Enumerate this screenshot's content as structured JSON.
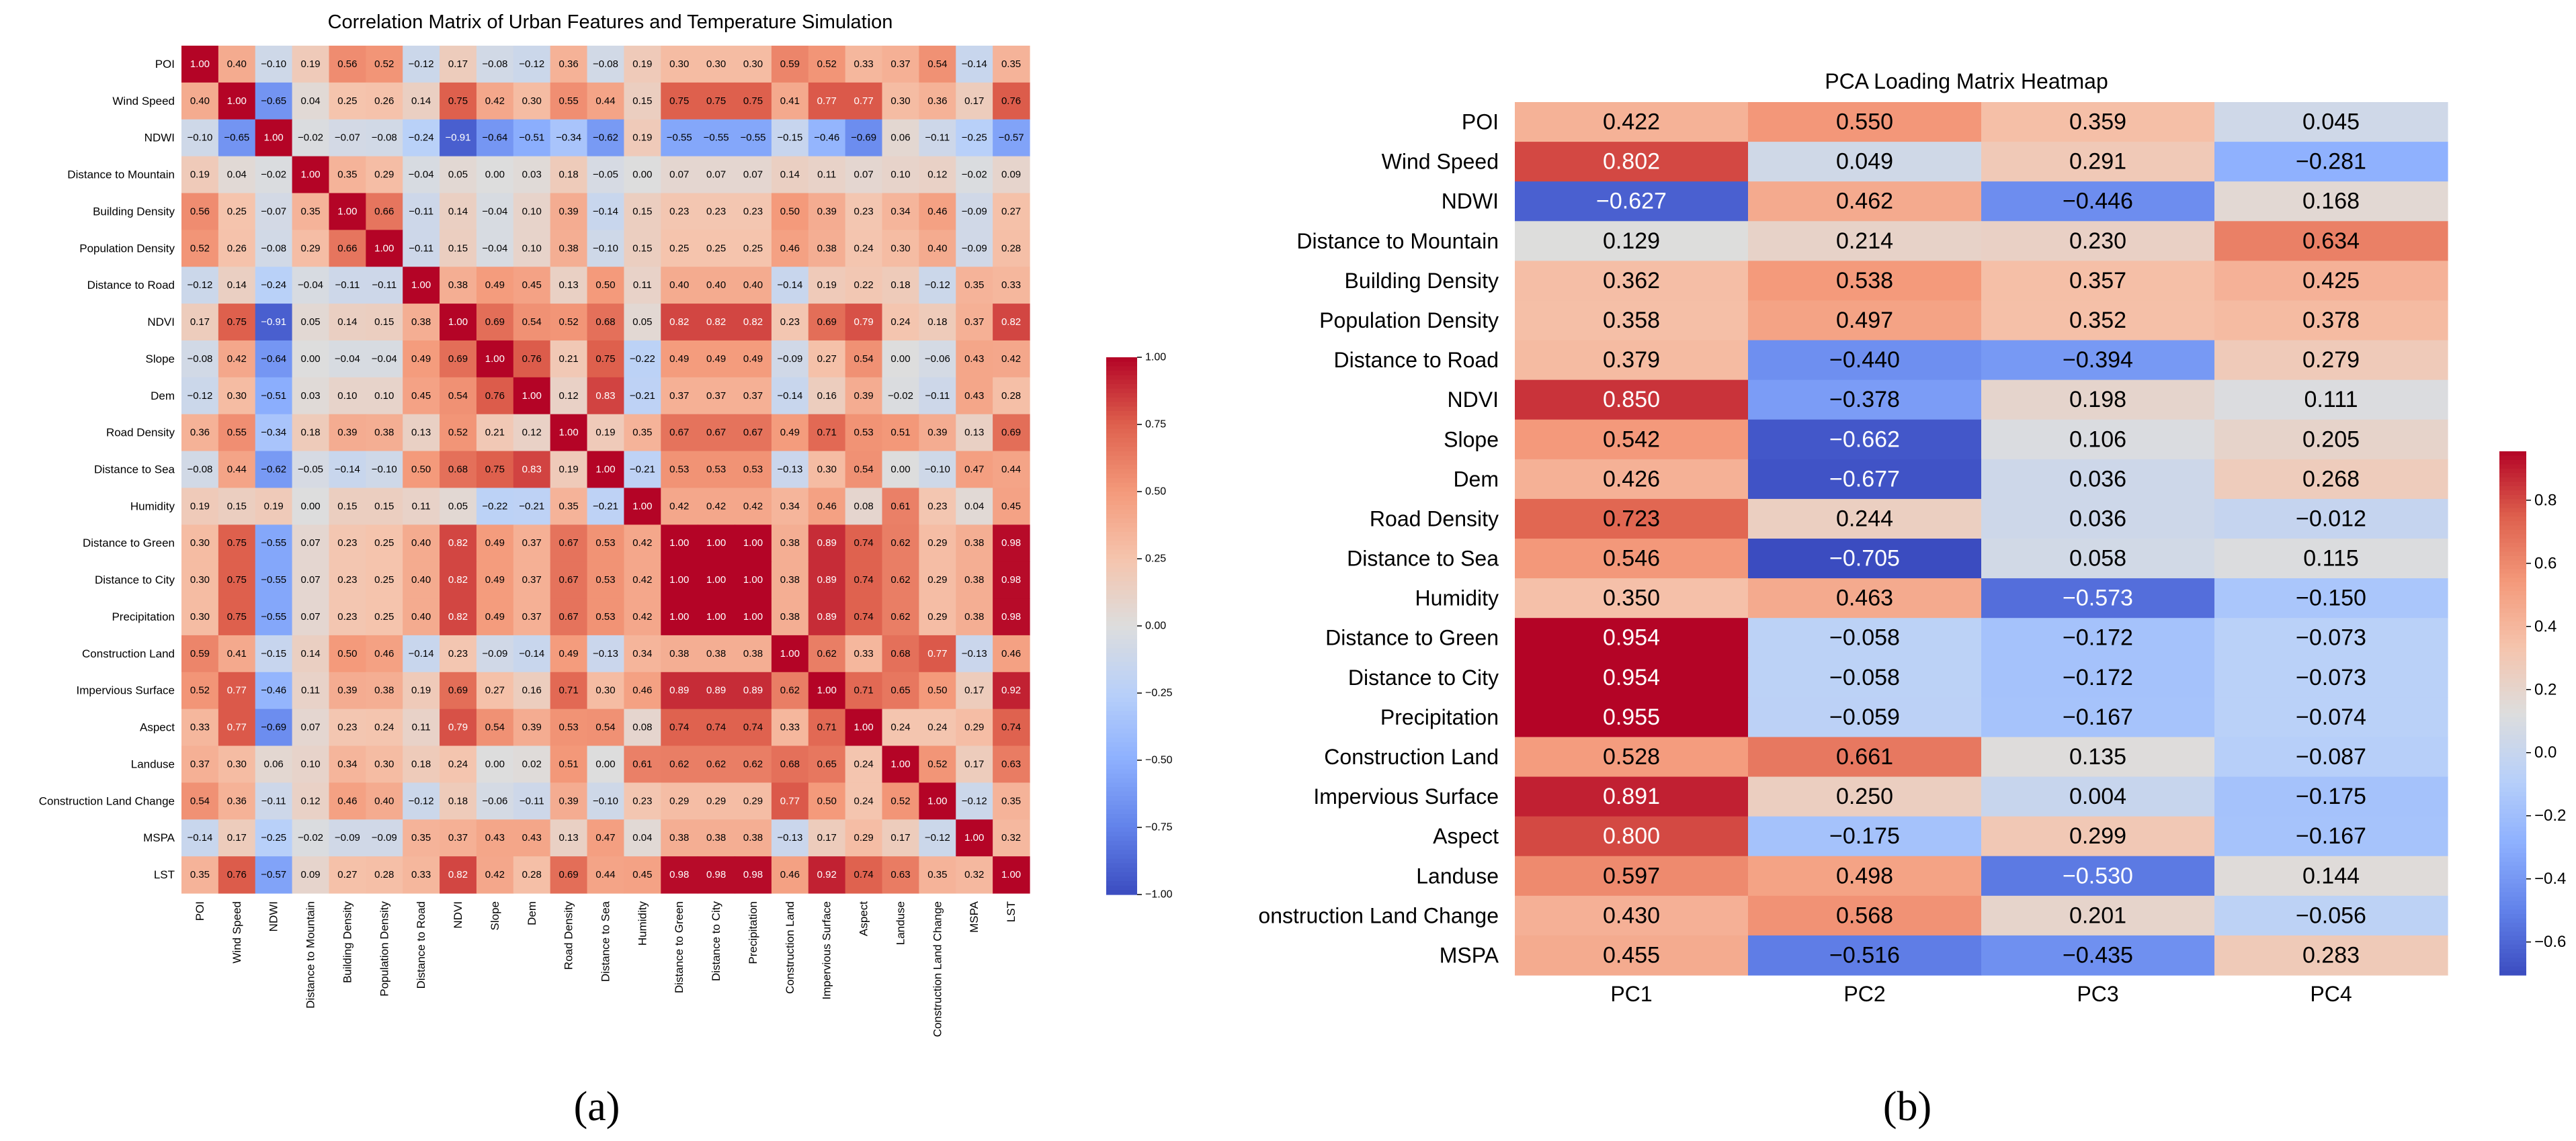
{
  "chart_data": [
    {
      "type": "heatmap",
      "title": "Correlation Matrix of Urban Features and Temperature Simulation",
      "panel_label": "(a)",
      "row_labels": [
        "POI",
        "Wind Speed",
        "NDWI",
        "Distance to Mountain",
        "Building Density",
        "Population Density",
        "Distance to Road",
        "NDVI",
        "Slope",
        "Dem",
        "Road Density",
        "Distance to Sea",
        "Humidity",
        "Distance to Green",
        "Distance to City",
        "Precipitation",
        "Construction Land",
        "Impervious Surface",
        "Aspect",
        "Landuse",
        "Construction Land Change",
        "MSPA",
        "LST"
      ],
      "col_labels": [
        "POI",
        "Wind Speed",
        "NDWI",
        "Distance to Mountain",
        "Building Density",
        "Population Density",
        "Distance to Road",
        "NDVI",
        "Slope",
        "Dem",
        "Road Density",
        "Distance to Sea",
        "Humidity",
        "Distance to Green",
        "Distance to City",
        "Precipitation",
        "Construction Land",
        "Impervious Surface",
        "Aspect",
        "Landuse",
        "Construction Land Change",
        "MSPA",
        "LST"
      ],
      "values": [
        [
          1.0,
          0.4,
          -0.1,
          0.19,
          0.56,
          0.52,
          -0.12,
          0.17,
          -0.08,
          -0.12,
          0.36,
          -0.08,
          0.19,
          0.3,
          0.3,
          0.3,
          0.59,
          0.52,
          0.33,
          0.37,
          0.54,
          -0.14,
          0.35
        ],
        [
          0.4,
          1.0,
          -0.65,
          0.04,
          0.25,
          0.26,
          0.14,
          0.75,
          0.42,
          0.3,
          0.55,
          0.44,
          0.15,
          0.75,
          0.75,
          0.75,
          0.41,
          0.77,
          0.77,
          0.3,
          0.36,
          0.17,
          0.76
        ],
        [
          -0.1,
          -0.65,
          1.0,
          -0.02,
          -0.07,
          -0.08,
          -0.24,
          -0.91,
          -0.64,
          -0.51,
          -0.34,
          -0.62,
          0.19,
          -0.55,
          -0.55,
          -0.55,
          -0.15,
          -0.46,
          -0.69,
          0.06,
          -0.11,
          -0.25,
          -0.57
        ],
        [
          0.19,
          0.04,
          -0.02,
          1.0,
          0.35,
          0.29,
          -0.04,
          0.05,
          0.0,
          0.03,
          0.18,
          -0.05,
          0.0,
          0.07,
          0.07,
          0.07,
          0.14,
          0.11,
          0.07,
          0.1,
          0.12,
          -0.02,
          0.09
        ],
        [
          0.56,
          0.25,
          -0.07,
          0.35,
          1.0,
          0.66,
          -0.11,
          0.14,
          -0.04,
          0.1,
          0.39,
          -0.14,
          0.15,
          0.23,
          0.23,
          0.23,
          0.5,
          0.39,
          0.23,
          0.34,
          0.46,
          -0.09,
          0.27
        ],
        [
          0.52,
          0.26,
          -0.08,
          0.29,
          0.66,
          1.0,
          -0.11,
          0.15,
          -0.04,
          0.1,
          0.38,
          -0.1,
          0.15,
          0.25,
          0.25,
          0.25,
          0.46,
          0.38,
          0.24,
          0.3,
          0.4,
          -0.09,
          0.28
        ],
        [
          -0.12,
          0.14,
          -0.24,
          -0.04,
          -0.11,
          -0.11,
          1.0,
          0.38,
          0.49,
          0.45,
          0.13,
          0.5,
          0.11,
          0.4,
          0.4,
          0.4,
          -0.14,
          0.19,
          0.22,
          0.18,
          -0.12,
          0.35,
          0.33
        ],
        [
          0.17,
          0.75,
          -0.91,
          0.05,
          0.14,
          0.15,
          0.38,
          1.0,
          0.69,
          0.54,
          0.52,
          0.68,
          0.05,
          0.82,
          0.82,
          0.82,
          0.23,
          0.69,
          0.79,
          0.24,
          0.18,
          0.37,
          0.82
        ],
        [
          -0.08,
          0.42,
          -0.64,
          0.0,
          -0.04,
          -0.04,
          0.49,
          0.69,
          1.0,
          0.76,
          0.21,
          0.75,
          -0.22,
          0.49,
          0.49,
          0.49,
          -0.09,
          0.27,
          0.54,
          0.0,
          -0.06,
          0.43,
          0.42
        ],
        [
          -0.12,
          0.3,
          -0.51,
          0.03,
          0.1,
          0.1,
          0.45,
          0.54,
          0.76,
          1.0,
          0.12,
          0.83,
          -0.21,
          0.37,
          0.37,
          0.37,
          -0.14,
          0.16,
          0.39,
          -0.02,
          -0.11,
          0.43,
          0.28
        ],
        [
          0.36,
          0.55,
          -0.34,
          0.18,
          0.39,
          0.38,
          0.13,
          0.52,
          0.21,
          0.12,
          1.0,
          0.19,
          0.35,
          0.67,
          0.67,
          0.67,
          0.49,
          0.71,
          0.53,
          0.51,
          0.39,
          0.13,
          0.69
        ],
        [
          -0.08,
          0.44,
          -0.62,
          -0.05,
          -0.14,
          -0.1,
          0.5,
          0.68,
          0.75,
          0.83,
          0.19,
          1.0,
          -0.21,
          0.53,
          0.53,
          0.53,
          -0.13,
          0.3,
          0.54,
          0.0,
          -0.1,
          0.47,
          0.44
        ],
        [
          0.19,
          0.15,
          0.19,
          0.0,
          0.15,
          0.15,
          0.11,
          0.05,
          -0.22,
          -0.21,
          0.35,
          -0.21,
          1.0,
          0.42,
          0.42,
          0.42,
          0.34,
          0.46,
          0.08,
          0.61,
          0.23,
          0.04,
          0.45
        ],
        [
          0.3,
          0.75,
          -0.55,
          0.07,
          0.23,
          0.25,
          0.4,
          0.82,
          0.49,
          0.37,
          0.67,
          0.53,
          0.42,
          1.0,
          1.0,
          1.0,
          0.38,
          0.89,
          0.74,
          0.62,
          0.29,
          0.38,
          0.98
        ],
        [
          0.3,
          0.75,
          -0.55,
          0.07,
          0.23,
          0.25,
          0.4,
          0.82,
          0.49,
          0.37,
          0.67,
          0.53,
          0.42,
          1.0,
          1.0,
          1.0,
          0.38,
          0.89,
          0.74,
          0.62,
          0.29,
          0.38,
          0.98
        ],
        [
          0.3,
          0.75,
          -0.55,
          0.07,
          0.23,
          0.25,
          0.4,
          0.82,
          0.49,
          0.37,
          0.67,
          0.53,
          0.42,
          1.0,
          1.0,
          1.0,
          0.38,
          0.89,
          0.74,
          0.62,
          0.29,
          0.38,
          0.98
        ],
        [
          0.59,
          0.41,
          -0.15,
          0.14,
          0.5,
          0.46,
          -0.14,
          0.23,
          -0.09,
          -0.14,
          0.49,
          -0.13,
          0.34,
          0.38,
          0.38,
          0.38,
          1.0,
          0.62,
          0.33,
          0.68,
          0.77,
          -0.13,
          0.46
        ],
        [
          0.52,
          0.77,
          -0.46,
          0.11,
          0.39,
          0.38,
          0.19,
          0.69,
          0.27,
          0.16,
          0.71,
          0.3,
          0.46,
          0.89,
          0.89,
          0.89,
          0.62,
          1.0,
          0.71,
          0.65,
          0.5,
          0.17,
          0.92
        ],
        [
          0.33,
          0.77,
          -0.69,
          0.07,
          0.23,
          0.24,
          0.11,
          0.79,
          0.54,
          0.39,
          0.53,
          0.54,
          0.08,
          0.74,
          0.74,
          0.74,
          0.33,
          0.71,
          1.0,
          0.24,
          0.24,
          0.29,
          0.74
        ],
        [
          0.37,
          0.3,
          0.06,
          0.1,
          0.34,
          0.3,
          0.18,
          0.24,
          0.0,
          0.02,
          0.51,
          0.0,
          0.61,
          0.62,
          0.62,
          0.62,
          0.68,
          0.65,
          0.24,
          1.0,
          0.52,
          0.17,
          0.63
        ],
        [
          0.54,
          0.36,
          -0.11,
          0.12,
          0.46,
          0.4,
          -0.12,
          0.18,
          -0.06,
          -0.11,
          0.39,
          -0.1,
          0.23,
          0.29,
          0.29,
          0.29,
          0.77,
          0.5,
          0.24,
          0.52,
          1.0,
          -0.12,
          0.35
        ],
        [
          -0.14,
          0.17,
          -0.25,
          -0.02,
          -0.09,
          -0.09,
          0.35,
          0.37,
          0.43,
          0.43,
          0.13,
          0.47,
          0.04,
          0.38,
          0.38,
          0.38,
          -0.13,
          0.17,
          0.29,
          0.17,
          -0.12,
          1.0,
          0.32
        ],
        [
          0.35,
          0.76,
          -0.57,
          0.09,
          0.27,
          0.28,
          0.33,
          0.82,
          0.42,
          0.28,
          0.69,
          0.44,
          0.45,
          0.98,
          0.98,
          0.98,
          0.46,
          0.92,
          0.74,
          0.63,
          0.35,
          0.32,
          1.0
        ]
      ],
      "vmin": -1.0,
      "vmax": 1.0,
      "colorbar_ticks": [
        1.0,
        0.75,
        0.5,
        0.25,
        0.0,
        -0.25,
        -0.5,
        -0.75,
        -1.0
      ],
      "colorbar_tick_labels": [
        "1.00",
        "0.75",
        "0.50",
        "0.25",
        "0.00",
        "−0.25",
        "−0.50",
        "−0.75",
        "−1.00"
      ],
      "colormap": "coolwarm"
    },
    {
      "type": "heatmap",
      "title": "PCA Loading Matrix Heatmap",
      "panel_label": "(b)",
      "row_labels": [
        "POI",
        "Wind Speed",
        "NDWI",
        "Distance to Mountain",
        "Building Density",
        "Population Density",
        "Distance to Road",
        "NDVI",
        "Slope",
        "Dem",
        "Road Density",
        "Distance to Sea",
        "Humidity",
        "Distance to Green",
        "Distance to City",
        "Precipitation",
        "Construction Land",
        "Impervious Surface",
        "Aspect",
        "Landuse",
        "onstruction Land Change",
        "MSPA"
      ],
      "col_labels": [
        "PC1",
        "PC2",
        "PC3",
        "PC4"
      ],
      "values": [
        [
          0.422,
          0.55,
          0.359,
          0.045
        ],
        [
          0.802,
          0.049,
          0.291,
          -0.281
        ],
        [
          -0.627,
          0.462,
          -0.446,
          0.168
        ],
        [
          0.129,
          0.214,
          0.23,
          0.634
        ],
        [
          0.362,
          0.538,
          0.357,
          0.425
        ],
        [
          0.358,
          0.497,
          0.352,
          0.378
        ],
        [
          0.379,
          -0.44,
          -0.394,
          0.279
        ],
        [
          0.85,
          -0.378,
          0.198,
          0.111
        ],
        [
          0.542,
          -0.662,
          0.106,
          0.205
        ],
        [
          0.426,
          -0.677,
          0.036,
          0.268
        ],
        [
          0.723,
          0.244,
          0.036,
          -0.012
        ],
        [
          0.546,
          -0.705,
          0.058,
          0.115
        ],
        [
          0.35,
          0.463,
          -0.573,
          -0.15
        ],
        [
          0.954,
          -0.058,
          -0.172,
          -0.073
        ],
        [
          0.954,
          -0.058,
          -0.172,
          -0.073
        ],
        [
          0.955,
          -0.059,
          -0.167,
          -0.074
        ],
        [
          0.528,
          0.661,
          0.135,
          -0.087
        ],
        [
          0.891,
          0.25,
          0.004,
          -0.175
        ],
        [
          0.8,
          -0.175,
          0.299,
          -0.167
        ],
        [
          0.597,
          0.498,
          -0.53,
          0.144
        ],
        [
          0.43,
          0.568,
          0.201,
          -0.056
        ],
        [
          0.455,
          -0.516,
          -0.435,
          0.283
        ]
      ],
      "vmin": -0.705,
      "vmax": 0.955,
      "colorbar_ticks": [
        0.8,
        0.6,
        0.4,
        0.2,
        0.0,
        -0.2,
        -0.4,
        -0.6
      ],
      "colorbar_tick_labels": [
        "0.8",
        "0.6",
        "0.4",
        "0.2",
        "0.0",
        "−0.2",
        "−0.4",
        "−0.6"
      ],
      "colormap": "coolwarm"
    }
  ]
}
